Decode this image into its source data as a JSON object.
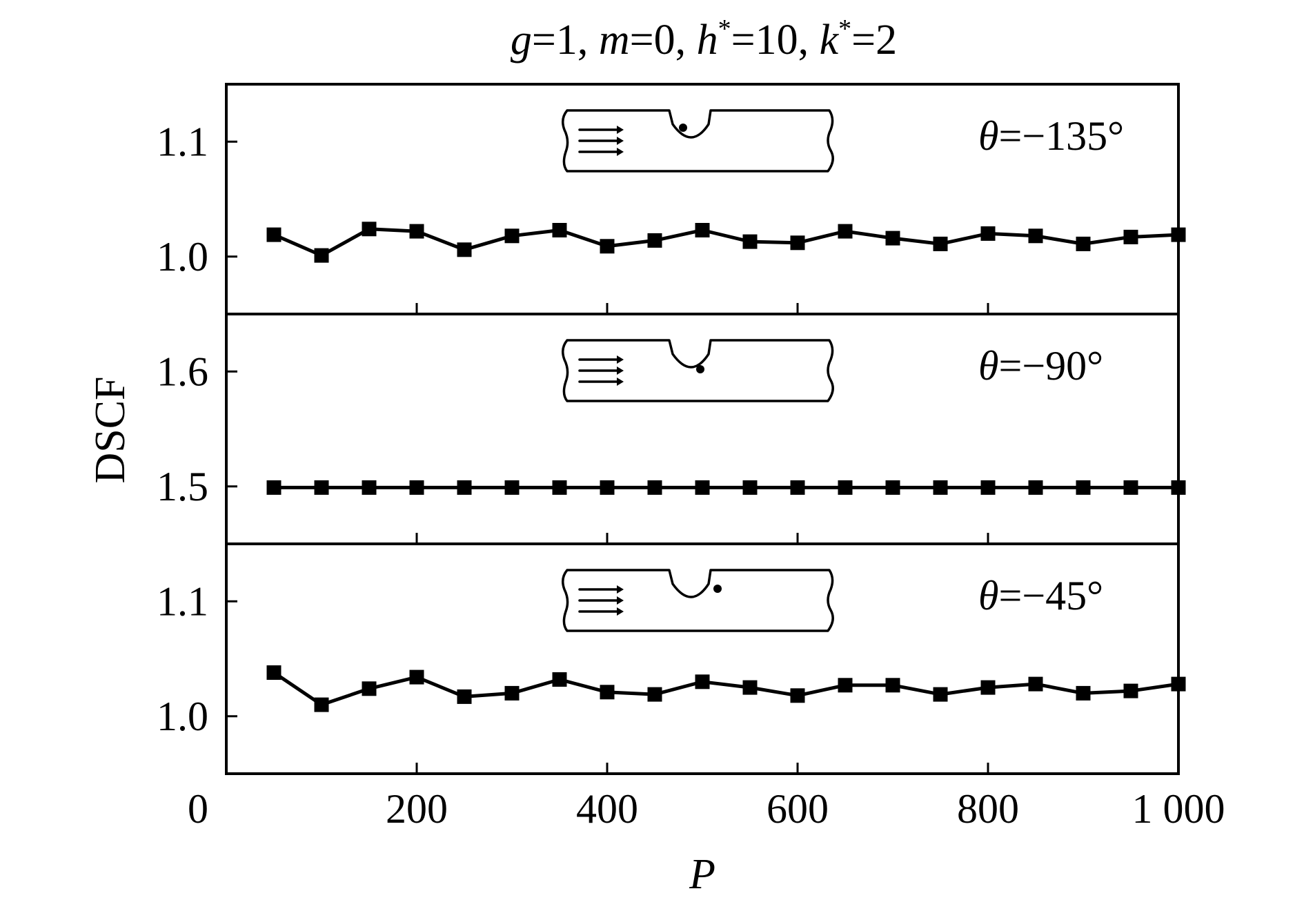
{
  "chart_data": {
    "type": "line",
    "title": {
      "prefix_g": "g",
      "eq1": "=1, ",
      "m": "m",
      "eq2": "=0, ",
      "h": "h",
      "star1": "*",
      "eq3": "=10, ",
      "k": "k",
      "star2": "*",
      "eq4": "=2"
    },
    "xlabel": "P",
    "ylabel": "DSCF",
    "xlim": [
      0,
      1000
    ],
    "x_ticks": [
      0,
      200,
      400,
      600,
      800,
      1000
    ],
    "x_tick_labels": [
      "0",
      "200",
      "400",
      "600",
      "800",
      "1 000"
    ],
    "x": [
      50,
      100,
      150,
      200,
      250,
      300,
      350,
      400,
      450,
      500,
      550,
      600,
      650,
      700,
      750,
      800,
      850,
      900,
      950,
      1000
    ],
    "panels": [
      {
        "annotation": {
          "theta": "θ",
          "value": "=−135°"
        },
        "ylim": [
          0.95,
          1.15
        ],
        "y_ticks": [
          1.0,
          1.1
        ],
        "y_tick_labels": [
          "1.0",
          "1.1"
        ],
        "values": [
          1.019,
          1.001,
          1.024,
          1.022,
          1.006,
          1.018,
          1.023,
          1.009,
          1.014,
          1.023,
          1.013,
          1.012,
          1.022,
          1.016,
          1.011,
          1.02,
          1.018,
          1.011,
          1.017,
          1.019
        ]
      },
      {
        "annotation": {
          "theta": "θ",
          "value": "=−90°"
        },
        "ylim": [
          1.45,
          1.65
        ],
        "y_ticks": [
          1.5,
          1.6
        ],
        "y_tick_labels": [
          "1.5",
          "1.6"
        ],
        "values": [
          1.499,
          1.499,
          1.499,
          1.499,
          1.499,
          1.499,
          1.499,
          1.499,
          1.499,
          1.499,
          1.499,
          1.499,
          1.499,
          1.499,
          1.499,
          1.499,
          1.499,
          1.499,
          1.499,
          1.499
        ]
      },
      {
        "annotation": {
          "theta": "θ",
          "value": "=−45°"
        },
        "ylim": [
          0.95,
          1.15
        ],
        "y_ticks": [
          1.0,
          1.1
        ],
        "y_tick_labels": [
          "1.0",
          "1.1"
        ],
        "values": [
          1.038,
          1.01,
          1.024,
          1.034,
          1.017,
          1.02,
          1.032,
          1.021,
          1.019,
          1.03,
          1.025,
          1.018,
          1.027,
          1.027,
          1.019,
          1.025,
          1.028,
          1.02,
          1.022,
          1.028
        ]
      }
    ],
    "marker": "filled-square",
    "grid": false,
    "legend": "none",
    "colors": {
      "line": "#000000",
      "marker": "#000000",
      "background": "#ffffff"
    },
    "inset_icon": "notched-plate-with-flow-arrows-icon"
  }
}
